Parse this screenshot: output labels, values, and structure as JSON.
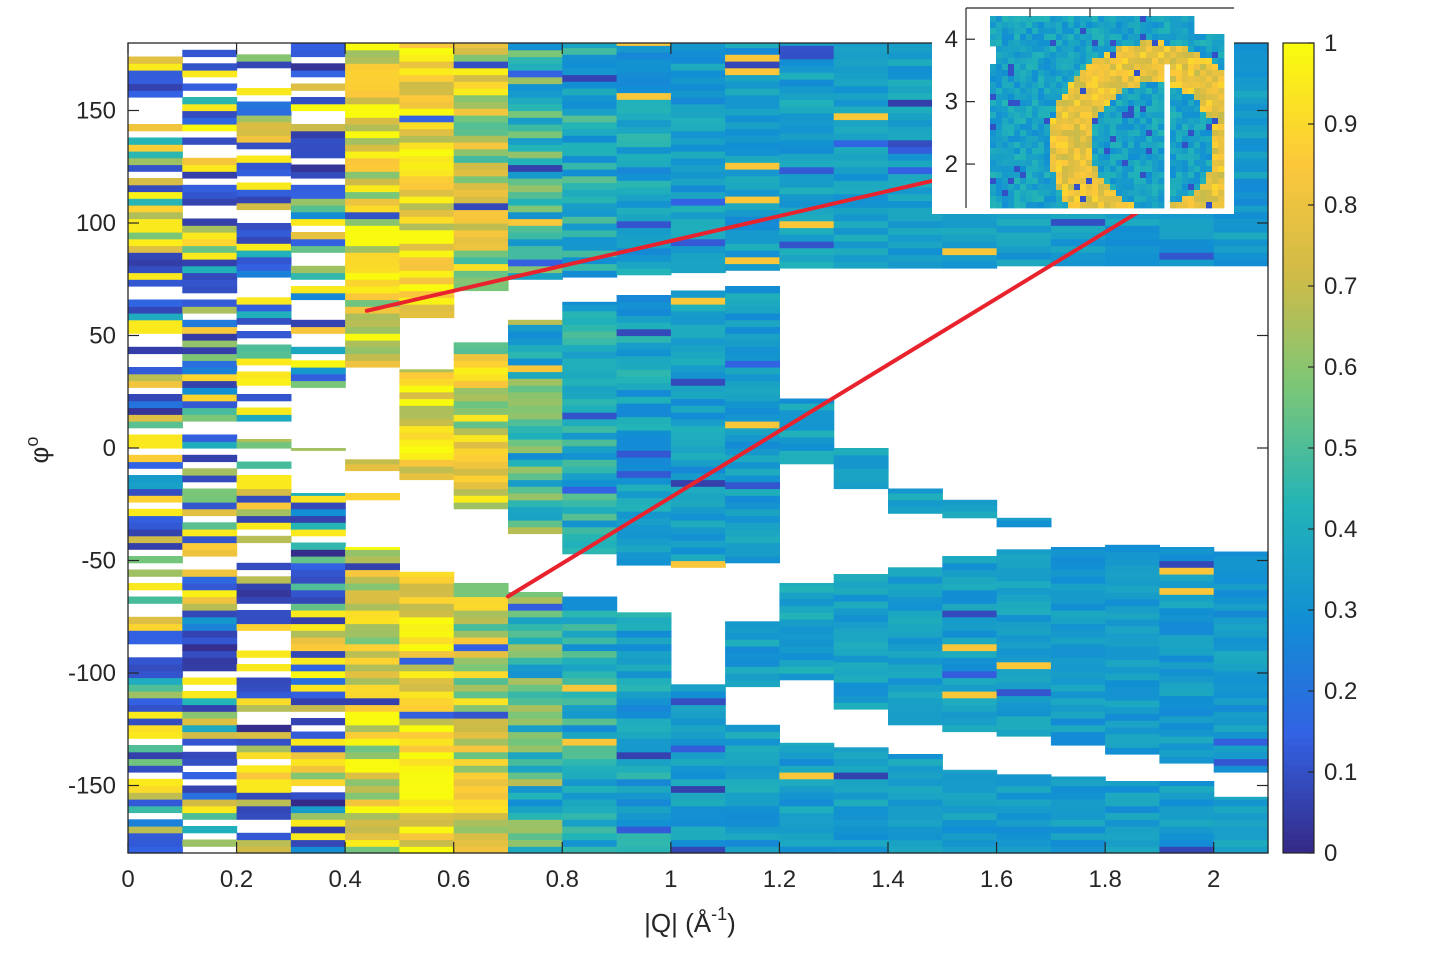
{
  "chart_data": [
    {
      "type": "heatmap",
      "title": "",
      "xlabel": "|Q| (Å",
      "xlabel_sup": "-1",
      "xlabel_close": ")",
      "ylabel": "φ",
      "ylabel_sup": "o",
      "xlim": [
        0,
        2.1
      ],
      "ylim": [
        -180,
        180
      ],
      "xticks": [
        0,
        0.2,
        0.4,
        0.6,
        0.8,
        1,
        1.2,
        1.4,
        1.6,
        1.8,
        2
      ],
      "xtick_labels": [
        "0",
        "0.2",
        "0.4",
        "0.6",
        "0.8",
        "1",
        "1.2",
        "1.4",
        "1.6",
        "1.8",
        "2"
      ],
      "yticks": [
        150,
        100,
        50,
        0,
        -50,
        -100,
        -150
      ],
      "ytick_labels": [
        "150",
        "100",
        "50",
        "0",
        "-50",
        "-100",
        "-150"
      ],
      "colormap": "parula",
      "clim": [
        0,
        1
      ],
      "colorbar_ticks": [
        1,
        0.9,
        0.8,
        0.7,
        0.6,
        0.5,
        0.4,
        0.3,
        0.2,
        0.1,
        0
      ],
      "colorbar_labels": [
        "1",
        "0.9",
        "0.8",
        "0.7",
        "0.6",
        "0.5",
        "0.4",
        "0.3",
        "0.2",
        "0.1",
        "0"
      ],
      "q_bin_width": 0.1,
      "row_step_deg": 3,
      "columns": [
        {
          "q": 0.05,
          "coverage": [
            [
              -180,
              180
            ]
          ],
          "mean": 0.12,
          "spread": 0.95
        },
        {
          "q": 0.15,
          "coverage": [
            [
              -180,
              180
            ]
          ],
          "mean": 0.3,
          "spread": 0.95
        },
        {
          "q": 0.25,
          "coverage": [
            [
              -180,
              4
            ],
            [
              12,
              25
            ],
            [
              28,
              180
            ]
          ],
          "mean": 0.5,
          "spread": 0.85
        },
        {
          "q": 0.35,
          "coverage": [
            [
              -180,
              -20
            ],
            [
              -4,
              0
            ],
            [
              27,
              180
            ]
          ],
          "mean": 0.55,
          "spread": 0.8
        },
        {
          "q": 0.45,
          "coverage": [
            [
              -180,
              -44
            ],
            [
              -23,
              -20
            ],
            [
              -10,
              -5
            ],
            [
              36,
              180
            ]
          ],
          "mean": 0.8,
          "spread": 0.5
        },
        {
          "q": 0.55,
          "coverage": [
            [
              -180,
              -55
            ],
            [
              -14,
              35
            ],
            [
              58,
              180
            ]
          ],
          "mean": 0.86,
          "spread": 0.4
        },
        {
          "q": 0.65,
          "coverage": [
            [
              -180,
              -60
            ],
            [
              -27,
              47
            ],
            [
              70,
              180
            ]
          ],
          "mean": 0.72,
          "spread": 0.5
        },
        {
          "q": 0.75,
          "coverage": [
            [
              -180,
              -64
            ],
            [
              -38,
              57
            ],
            [
              75,
              180
            ]
          ],
          "mean": 0.48,
          "spread": 0.4
        },
        {
          "q": 0.85,
          "coverage": [
            [
              -180,
              -66
            ],
            [
              -47,
              65
            ],
            [
              76,
              180
            ]
          ],
          "mean": 0.4,
          "spread": 0.25
        },
        {
          "q": 0.95,
          "coverage": [
            [
              -180,
              -73
            ],
            [
              -52,
              68
            ],
            [
              77,
              180
            ]
          ],
          "mean": 0.36,
          "spread": 0.2
        },
        {
          "q": 1.05,
          "coverage": [
            [
              -180,
              -105
            ],
            [
              -53,
              70
            ],
            [
              78,
              180
            ]
          ],
          "mean": 0.34,
          "spread": 0.15
        },
        {
          "q": 1.15,
          "coverage": [
            [
              -180,
              -123
            ],
            [
              -106,
              -77
            ],
            [
              -51,
              72
            ],
            [
              79,
              180
            ]
          ],
          "mean": 0.34,
          "spread": 0.15
        },
        {
          "q": 1.25,
          "coverage": [
            [
              -180,
              -131
            ],
            [
              -103,
              -60
            ],
            [
              -7,
              22
            ],
            [
              80,
              180
            ]
          ],
          "mean": 0.35,
          "spread": 0.15
        },
        {
          "q": 1.35,
          "coverage": [
            [
              -180,
              -133
            ],
            [
              -116,
              -56
            ],
            [
              -18,
              0
            ],
            [
              80,
              180
            ]
          ],
          "mean": 0.35,
          "spread": 0.12
        },
        {
          "q": 1.45,
          "coverage": [
            [
              -180,
              -136
            ],
            [
              -123,
              -53
            ],
            [
              -29,
              -18
            ],
            [
              80,
              180
            ]
          ],
          "mean": 0.35,
          "spread": 0.12
        },
        {
          "q": 1.55,
          "coverage": [
            [
              -180,
              -143
            ],
            [
              -126,
              -48
            ],
            [
              -31,
              -23
            ],
            [
              80,
              180
            ]
          ],
          "mean": 0.34,
          "spread": 0.12
        },
        {
          "q": 1.65,
          "coverage": [
            [
              -180,
              -145
            ],
            [
              -128,
              -45
            ],
            [
              -35,
              -31
            ],
            [
              81,
              180
            ]
          ],
          "mean": 0.34,
          "spread": 0.12
        },
        {
          "q": 1.75,
          "coverage": [
            [
              -180,
              -146
            ],
            [
              -132,
              -44
            ],
            [
              81,
              180
            ]
          ],
          "mean": 0.33,
          "spread": 0.12
        },
        {
          "q": 1.85,
          "coverage": [
            [
              -180,
              -148
            ],
            [
              -136,
              -43
            ],
            [
              81,
              180
            ]
          ],
          "mean": 0.33,
          "spread": 0.12
        },
        {
          "q": 1.95,
          "coverage": [
            [
              -180,
              -148
            ],
            [
              -140,
              -44
            ],
            [
              81,
              180
            ]
          ],
          "mean": 0.33,
          "spread": 0.12
        },
        {
          "q": 2.05,
          "coverage": [
            [
              -180,
              -155
            ],
            [
              -144,
              -46
            ],
            [
              81,
              180
            ]
          ],
          "mean": 0.33,
          "spread": 0.12
        }
      ],
      "annotation_lines": [
        {
          "from": [
            0.44,
            61
          ],
          "to": [
            1.92,
            143
          ],
          "color": "#e8232d"
        },
        {
          "from": [
            0.7,
            -66
          ],
          "to": [
            1.93,
            115
          ],
          "color": "#e8232d"
        }
      ]
    },
    {
      "type": "heatmap",
      "role": "inset",
      "yticks": [
        4,
        3,
        2
      ],
      "ytick_labels": [
        "4",
        "3",
        "2"
      ],
      "ylim": [
        1.2,
        4.5
      ],
      "ring": {
        "cx": 0.62,
        "cy": 2.35,
        "radius": 0.4,
        "value": 0.9
      }
    }
  ]
}
